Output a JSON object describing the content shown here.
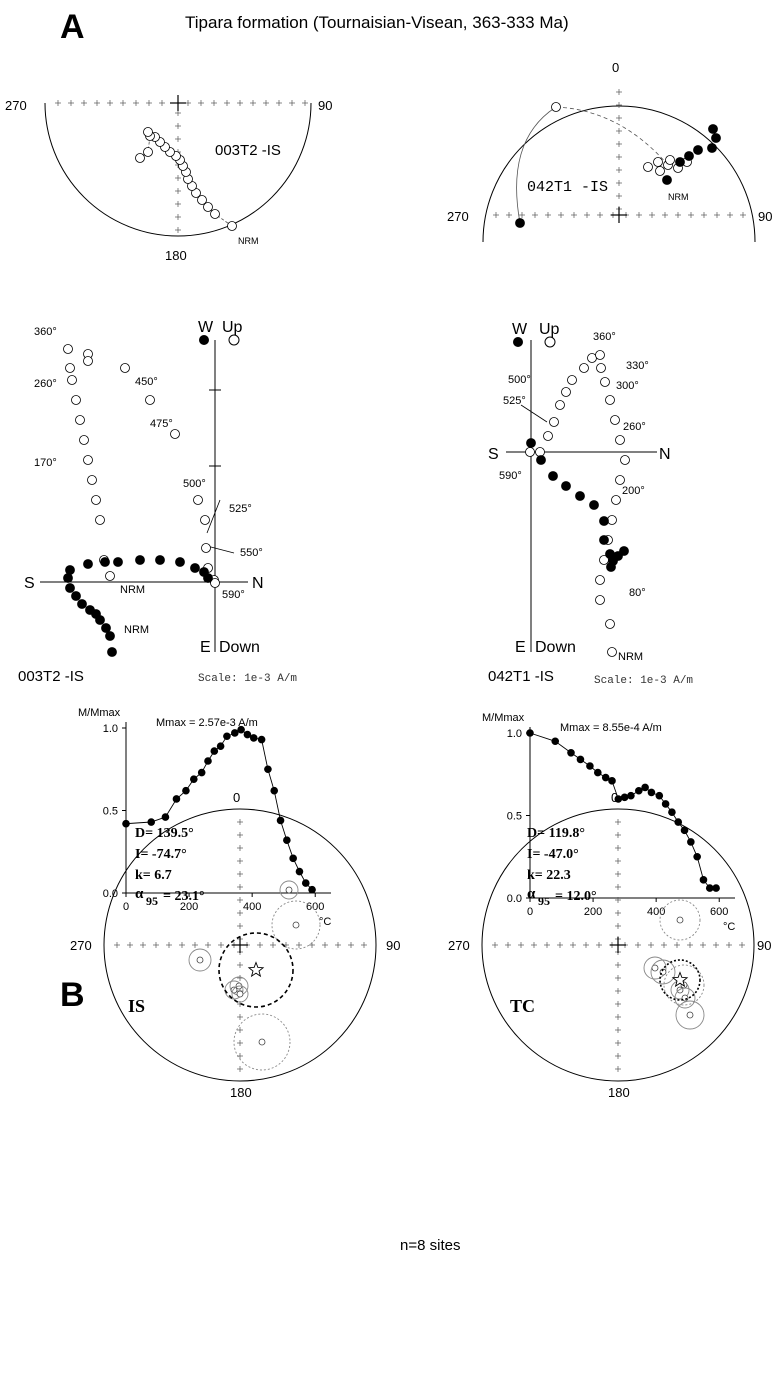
{
  "panel_a": {
    "letter": "A",
    "title": "Tipara formation (Tournaisian-Visean, 363-333 Ma)"
  },
  "panel_b": {
    "letter": "B",
    "n_sites": "n=8 sites"
  },
  "stereonet_003T2": {
    "label": "003T2 -IS",
    "nrm": "NRM",
    "tick_270": "270",
    "tick_90": "90",
    "tick_180": "180"
  },
  "stereonet_042T1": {
    "label": "042T1 -IS",
    "nrm": "NRM",
    "tick_0": "0",
    "tick_270": "270",
    "tick_90": "90"
  },
  "zijderveld_003T2": {
    "label": "003T2 -IS",
    "scale": "Scale: 1e-3 A/m",
    "axis_w": "W",
    "axis_up": "Up",
    "axis_s": "S",
    "axis_n": "N",
    "axis_e": "E",
    "axis_down": "Down",
    "steps": [
      "360°",
      "450°",
      "475°",
      "260°",
      "170°",
      "500°",
      "525°",
      "550°",
      "590°",
      "NRM",
      "NRM"
    ]
  },
  "zijderveld_042T1": {
    "label": "042T1 -IS",
    "scale": "Scale: 1e-3 A/m",
    "axis_w": "W",
    "axis_up": "Up",
    "axis_s": "S",
    "axis_n": "N",
    "axis_e": "E",
    "axis_down": "Down",
    "steps": [
      "360°",
      "330°",
      "300°",
      "500°",
      "525°",
      "260°",
      "590°",
      "200°",
      "80°",
      "NRM"
    ]
  },
  "chart_data": [
    {
      "type": "line",
      "title": "Mmax = 2.57e-3 A/m",
      "ylabel": "M/Mmax",
      "xlabel": "°C",
      "xlim": [
        0,
        650
      ],
      "ylim": [
        0,
        1.0
      ],
      "xticks": [
        "0",
        "200",
        "400",
        "600"
      ],
      "yticks": [
        "0.0",
        "0.5",
        "1.0"
      ],
      "x": [
        0,
        80,
        125,
        160,
        190,
        215,
        240,
        260,
        280,
        300,
        320,
        345,
        365,
        385,
        405,
        430,
        450,
        470,
        490,
        510,
        530,
        550,
        570,
        590
      ],
      "y": [
        0.42,
        0.43,
        0.46,
        0.57,
        0.62,
        0.69,
        0.73,
        0.8,
        0.86,
        0.89,
        0.95,
        0.97,
        0.99,
        0.96,
        0.94,
        0.93,
        0.75,
        0.62,
        0.44,
        0.32,
        0.21,
        0.13,
        0.06,
        0.02
      ]
    },
    {
      "type": "line",
      "title": "Mmax = 8.55e-4 A/m",
      "ylabel": "M/Mmax",
      "xlabel": "°C",
      "xlim": [
        0,
        650
      ],
      "ylim": [
        0,
        1.0
      ],
      "xticks": [
        "0",
        "200",
        "400",
        "600"
      ],
      "yticks": [
        "0.0",
        "0.5",
        "1.0"
      ],
      "x": [
        0,
        80,
        130,
        160,
        190,
        215,
        240,
        260,
        280,
        300,
        320,
        345,
        365,
        385,
        410,
        430,
        450,
        470,
        490,
        510,
        530,
        550,
        570,
        590
      ],
      "y": [
        1.0,
        0.95,
        0.88,
        0.84,
        0.8,
        0.76,
        0.73,
        0.71,
        0.6,
        0.61,
        0.62,
        0.65,
        0.67,
        0.64,
        0.62,
        0.57,
        0.52,
        0.46,
        0.41,
        0.34,
        0.25,
        0.11,
        0.06,
        0.06
      ]
    }
  ],
  "stereonet_is": {
    "label": "IS",
    "tick_0": "0",
    "tick_270": "270",
    "tick_90": "90",
    "tick_180": "180",
    "stats": [
      "D= 139.5°",
      "I= -74.7°",
      "k= 6.7"
    ],
    "alpha_label": "α",
    "alpha_sub": "95",
    "alpha_value": "= 23.1°"
  },
  "stereonet_tc": {
    "label": "TC",
    "tick_0": "0",
    "tick_270": "270",
    "tick_90": "90",
    "tick_180": "180",
    "stats": [
      "D= 119.8°",
      "I= -47.0°",
      "k= 22.3"
    ],
    "alpha_label": "α",
    "alpha_sub": "95",
    "alpha_value": "= 12.0°"
  }
}
